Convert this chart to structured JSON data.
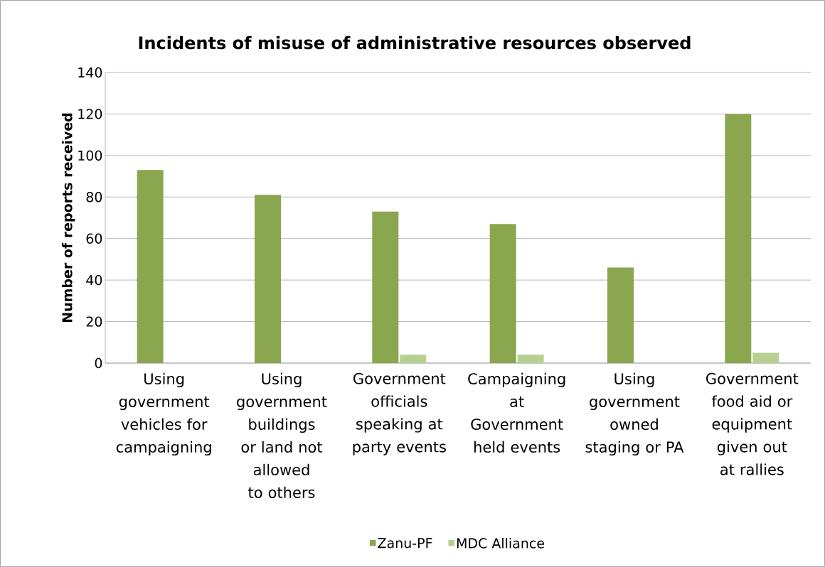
{
  "chart_data": {
    "type": "bar",
    "title": "Incidents of misuse of administrative resources observed",
    "ylabel": "Number of reports received",
    "categories": [
      "Using government vehicles for campaigning",
      "Using government buildings or land not allowed to others",
      "Government officials speaking at party events",
      "Campaigning at Government held events",
      "Using government owned staging or PA",
      "Government food aid or equipment given out at rallies"
    ],
    "series": [
      {
        "name": "Zanu-PF",
        "color": "#8aa64e",
        "values": [
          93,
          81,
          73,
          67,
          46,
          120
        ]
      },
      {
        "name": "MDC Alliance",
        "color": "#b6d18f",
        "values": [
          0,
          0,
          4,
          4,
          0,
          5
        ]
      }
    ],
    "ylim": [
      0,
      140
    ],
    "yticks": [
      0,
      20,
      40,
      60,
      80,
      100,
      120,
      140
    ],
    "grid": "y",
    "legend": "bottom"
  }
}
